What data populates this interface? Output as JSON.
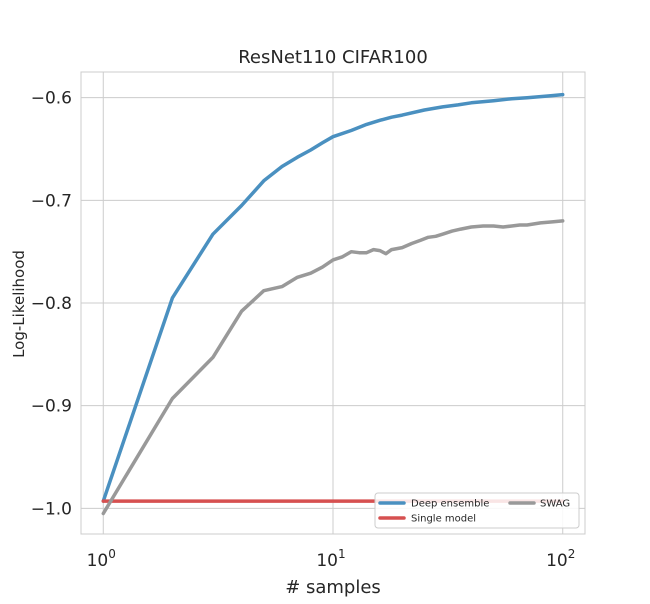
{
  "chart_data": {
    "type": "line",
    "title": "ResNet110 CIFAR100",
    "xlabel": "# samples",
    "ylabel": "Log-Likelihood",
    "xscale": "log",
    "xlim": [
      0.8,
      125
    ],
    "ylim": [
      -1.025,
      -0.575
    ],
    "grid": true,
    "legend_position": "bottom-right",
    "x_ticks": [
      {
        "value": 1,
        "base": "10",
        "exp": "0"
      },
      {
        "value": 10,
        "base": "10",
        "exp": "1"
      },
      {
        "value": 100,
        "base": "10",
        "exp": "2"
      }
    ],
    "y_ticks": [
      {
        "value": -0.6,
        "label": "−0.6"
      },
      {
        "value": -0.7,
        "label": "−0.7"
      },
      {
        "value": -0.8,
        "label": "−0.8"
      },
      {
        "value": -0.9,
        "label": "−0.9"
      },
      {
        "value": -1.0,
        "label": "−1.0"
      }
    ],
    "series": [
      {
        "name": "Deep ensemble",
        "color": "#4a90c0",
        "x": [
          1,
          2,
          3,
          4,
          5,
          6,
          7,
          8,
          9,
          10,
          12,
          14,
          16,
          18,
          20,
          25,
          30,
          35,
          40,
          50,
          60,
          70,
          80,
          90,
          100
        ],
        "y": [
          -0.993,
          -0.795,
          -0.733,
          -0.705,
          -0.681,
          -0.667,
          -0.658,
          -0.651,
          -0.644,
          -0.638,
          -0.632,
          -0.626,
          -0.622,
          -0.619,
          -0.617,
          -0.612,
          -0.609,
          -0.607,
          -0.605,
          -0.603,
          -0.601,
          -0.6,
          -0.599,
          -0.598,
          -0.597
        ]
      },
      {
        "name": "Single model",
        "color": "#d65050",
        "x": [
          1,
          100
        ],
        "y": [
          -0.993,
          -0.993
        ]
      },
      {
        "name": "SWAG",
        "color": "#999999",
        "x": [
          1,
          2,
          3,
          4,
          5,
          6,
          7,
          8,
          9,
          10,
          11,
          12,
          13,
          14,
          15,
          16,
          17,
          18,
          19,
          20,
          22,
          24,
          26,
          28,
          30,
          33,
          36,
          40,
          45,
          50,
          55,
          60,
          65,
          70,
          80,
          90,
          100
        ],
        "y": [
          -1.005,
          -0.893,
          -0.853,
          -0.808,
          -0.788,
          -0.784,
          -0.775,
          -0.771,
          -0.765,
          -0.758,
          -0.755,
          -0.75,
          -0.751,
          -0.751,
          -0.748,
          -0.749,
          -0.752,
          -0.748,
          -0.747,
          -0.746,
          -0.742,
          -0.739,
          -0.736,
          -0.735,
          -0.733,
          -0.73,
          -0.728,
          -0.726,
          -0.725,
          -0.725,
          -0.726,
          -0.725,
          -0.724,
          -0.724,
          -0.722,
          -0.721,
          -0.72
        ]
      }
    ]
  }
}
